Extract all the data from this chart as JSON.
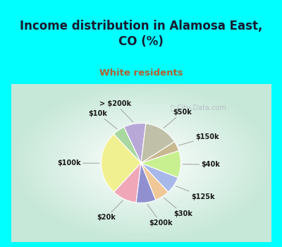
{
  "title": "Income distribution in Alamosa East,\nCO (%)",
  "subtitle": "White residents",
  "title_color": "#1a1a2e",
  "subtitle_color": "#b06030",
  "bg_cyan": "#00ffff",
  "bg_chart_gradient_center": "#ffffff",
  "bg_chart_gradient_edge": "#c8e8d8",
  "labels": [
    "> $200k",
    "$10k",
    "$100k",
    "$20k",
    "$200k",
    "$30k",
    "$125k",
    "$40k",
    "$150k",
    "$50k"
  ],
  "values": [
    9,
    5,
    26,
    10,
    8,
    6,
    7,
    11,
    4,
    14
  ],
  "colors": [
    "#b8a8d8",
    "#a8d8a0",
    "#f0f090",
    "#f0a8b8",
    "#9090d0",
    "#f0c898",
    "#a8b8e8",
    "#c8f090",
    "#c8b890",
    "#c0c0a8"
  ],
  "startangle": 83,
  "line_color": "#a0a0a0",
  "label_color": "#1a1a1a",
  "watermark": "City-Data.com",
  "watermark_color": "#b0b8c0",
  "edge_color": "#ffffff",
  "edge_lw": 0.8
}
